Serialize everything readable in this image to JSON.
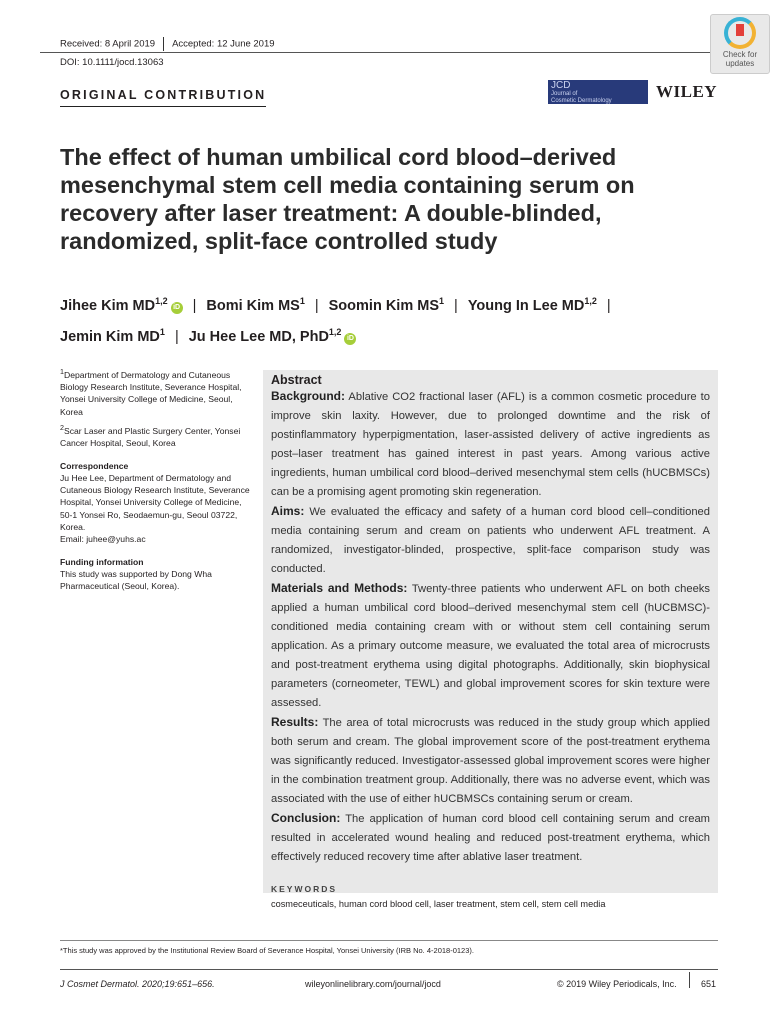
{
  "header": {
    "received": "Received: 8 April 2019",
    "accepted": "Accepted: 12 June 2019",
    "doi": "DOI: 10.1111/jocd.13063",
    "section": "ORIGINAL CONTRIBUTION",
    "check_updates": "Check for updates",
    "journal_logo": {
      "abbr": "JCD",
      "line1": "Journal of",
      "line2": "Cosmetic Dermatology"
    },
    "publisher": "WILEY"
  },
  "title": "The effect of human umbilical cord blood–derived mesenchymal stem cell media containing serum on recovery after laser treatment: A double-blinded, randomized, split-face controlled study",
  "authors": [
    {
      "name": "Jihee Kim MD",
      "sup": "1,2",
      "orcid": true
    },
    {
      "name": "Bomi Kim MS",
      "sup": "1",
      "orcid": false
    },
    {
      "name": "Soomin Kim MS",
      "sup": "1",
      "orcid": false
    },
    {
      "name": "Young In Lee MD",
      "sup": "1,2",
      "orcid": false
    },
    {
      "name": "Jemin Kim MD",
      "sup": "1",
      "orcid": false
    },
    {
      "name": "Ju Hee Lee MD, PhD",
      "sup": "1,2",
      "orcid": true
    }
  ],
  "orcid_label": "iD",
  "affiliations": [
    {
      "sup": "1",
      "text": "Department of Dermatology and Cutaneous Biology Research Institute, Severance Hospital, Yonsei University College of Medicine, Seoul, Korea"
    },
    {
      "sup": "2",
      "text": "Scar Laser and Plastic Surgery Center, Yonsei Cancer Hospital, Seoul, Korea"
    }
  ],
  "correspondence": {
    "heading": "Correspondence",
    "text": "Ju Hee Lee, Department of Dermatology and Cutaneous Biology Research Institute, Severance Hospital, Yonsei University College of Medicine, 50-1 Yonsei Ro, Seodaemun-gu, Seoul 03722, Korea.",
    "email": "Email: juhee@yuhs.ac"
  },
  "funding": {
    "heading": "Funding information",
    "text": "This study was supported by Dong Wha Pharmaceutical (Seoul, Korea)."
  },
  "abstract": {
    "heading": "Abstract",
    "sections": [
      {
        "label": "Background:",
        "text": " Ablative CO2 fractional laser (AFL) is a common cosmetic procedure to improve skin laxity. However, due to prolonged downtime and the risk of postinflammatory hyperpigmentation, laser-assisted delivery of active ingredients as post–laser treatment has gained interest in past years. Among various active ingredients, human umbilical cord blood–derived mesenchymal stem cells (hUCBMSCs) can be a promising agent promoting skin regeneration."
      },
      {
        "label": "Aims:",
        "text": " We evaluated the efficacy and safety of a human cord blood cell–conditioned media containing serum and cream on patients who underwent AFL treatment. A randomized, investigator-blinded, prospective, split-face comparison study was conducted."
      },
      {
        "label": "Materials and Methods:",
        "text": " Twenty-three patients who underwent AFL on both cheeks applied a human umbilical cord blood–derived mesenchymal stem cell (hUCBMSC)-conditioned media containing cream with or without stem cell containing serum application. As a primary outcome measure, we evaluated the total area of microcrusts and post-treatment erythema using digital photographs. Additionally, skin biophysical parameters (corneometer, TEWL) and global improvement scores for skin texture were assessed."
      },
      {
        "label": "Results:",
        "text": " The area of total microcrusts was reduced in the study group which applied both serum and cream. The global improvement score of the post-treatment erythema was significantly reduced. Investigator-assessed global improvement scores were higher in the combination treatment group. Additionally, there was no adverse event, which was associated with the use of either hUCBMSCs containing serum or cream."
      },
      {
        "label": "Conclusion:",
        "text": " The application of human cord blood cell containing serum and cream resulted in accelerated wound healing and reduced post-treatment erythema, which effectively reduced recovery time after ablative laser treatment."
      }
    ],
    "keywords_heading": "KEYWORDS",
    "keywords": "cosmeceuticals, human cord blood cell, laser treatment, stem cell, stem cell media"
  },
  "footnote": "*This study was approved by the Institutional Review Board of Severance Hospital, Yonsei University (IRB No. 4-2018-0123).",
  "footer": {
    "citation": "J Cosmet Dermatol. 2020;19:651–656.",
    "url": "wileyonlinelibrary.com/journal/jocd",
    "copyright": "© 2019 Wiley Periodicals, Inc.",
    "page": "651"
  }
}
